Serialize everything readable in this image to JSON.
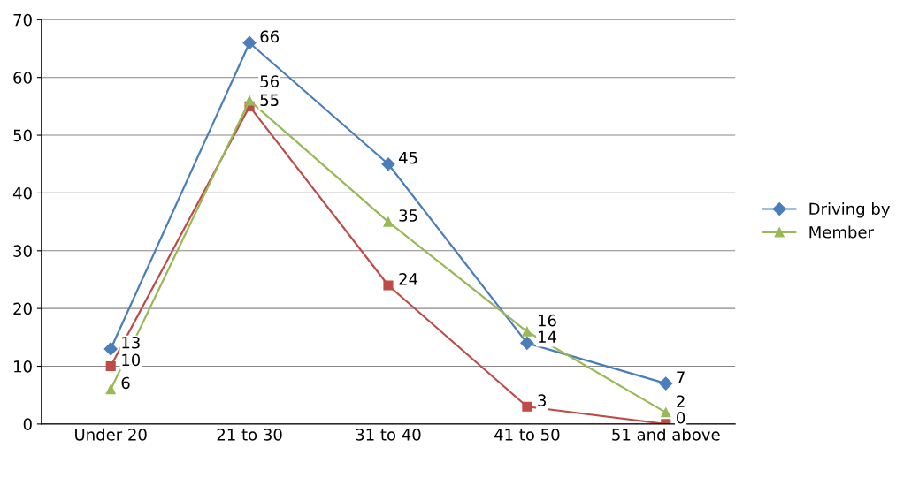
{
  "chart_data": {
    "type": "line",
    "categories": [
      "Under 20",
      "21 to 30",
      "31 to 40",
      "41 to 50",
      "51 and above"
    ],
    "series": [
      {
        "name": "Driving by",
        "color": "#4a7ebb",
        "marker": "diamond",
        "values": [
          13,
          66,
          45,
          14,
          7
        ]
      },
      {
        "color": "#be4b48",
        "marker": "square",
        "values": [
          10,
          55,
          24,
          3,
          0
        ]
      },
      {
        "name": "Member",
        "color": "#98b954",
        "marker": "triangle",
        "values": [
          6,
          56,
          35,
          16,
          2
        ]
      }
    ],
    "ylim": [
      0,
      70
    ],
    "yticks": [
      0,
      10,
      20,
      30,
      40,
      50,
      60,
      70
    ],
    "grid": "y",
    "legend": "right",
    "data_labels": true,
    "line_style": "solid"
  }
}
